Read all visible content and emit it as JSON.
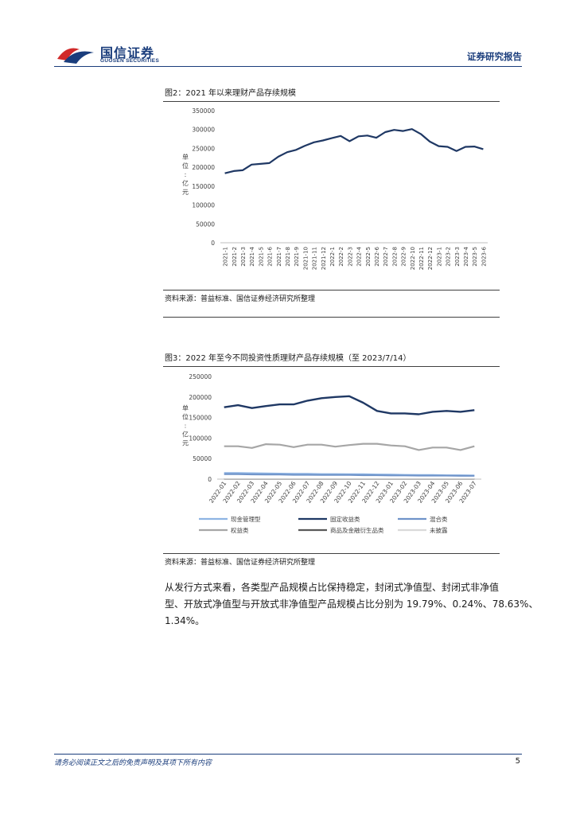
{
  "header": {
    "logo_cn": "国信证券",
    "logo_en": "GUOSEN SECURITIES",
    "report_type": "证券研究报告"
  },
  "figure2": {
    "title": "图2：2021 年以来理财产品存续规模",
    "source": "资料来源：普益标准、国信证券经济研究所整理"
  },
  "figure3": {
    "title": "图3：2022 年至今不同投资性质理财产品存续规模（至 2023/7/14）",
    "source": "资料来源：普益标准、国信证券经济研究所整理"
  },
  "body": {
    "paragraph_lines": [
      "从发行方式来看，各类型产品规模占比保持稳定，封闭式净值型、封闭式非净值",
      "型、开放式净值型与开放式非净值型产品规模占比分别为 19.79%、0.24%、78.63%、",
      "1.34%。"
    ]
  },
  "footer": {
    "disclaimer": "请务必阅读正文之后的免责声明及其项下所有内容",
    "page_number": "5"
  },
  "colors": {
    "brand_blue": "#1a3d7c",
    "logo_red": "#d12a2a",
    "navy_line": "#1f3864",
    "light_blue_line": "#8eb4e3",
    "mid_blue_line": "#6f93c9",
    "gray_line": "#a6a6a6"
  },
  "chart_data": [
    {
      "type": "line",
      "ylabel": "单位：亿元",
      "ylim": [
        0,
        350000
      ],
      "yticks": [
        "0",
        "50000",
        "100000",
        "150000",
        "200000",
        "250000",
        "300000",
        "350000"
      ],
      "grid": false,
      "x": [
        "2021-1",
        "2021-2",
        "2021-3",
        "2021-4",
        "2021-5",
        "2021-6",
        "2021-7",
        "2021-8",
        "2021-9",
        "2021-10",
        "2021-11",
        "2021-12",
        "2022-1",
        "2022-2",
        "2022-3",
        "2022-4",
        "2022-5",
        "2022-6",
        "2022-7",
        "2022-8",
        "2022-9",
        "2022-10",
        "2022-11",
        "2022-12",
        "2023-1",
        "2023-2",
        "2023-3",
        "2023-4",
        "2023-5",
        "2023-6"
      ],
      "series": [
        {
          "values": [
            184000,
            190000,
            192000,
            207000,
            209000,
            211000,
            228000,
            240000,
            246000,
            257000,
            266000,
            271000,
            277000,
            283000,
            269000,
            282000,
            284000,
            278000,
            293000,
            299000,
            296000,
            301000,
            288000,
            268000,
            256000,
            254000,
            243000,
            254000,
            255000,
            248000
          ]
        }
      ]
    },
    {
      "type": "line",
      "ylabel": "单位：亿元",
      "ylim": [
        0,
        250000
      ],
      "yticks": [
        "0",
        "50000",
        "100000",
        "150000",
        "200000",
        "250000"
      ],
      "grid": false,
      "legend": "bottom",
      "x": [
        "2022-01",
        "2022-02",
        "2022-03",
        "2022-04",
        "2022-05",
        "2022-06",
        "2022-07",
        "2022-08",
        "2022-09",
        "2022-10",
        "2022-11",
        "2022-12",
        "2023-01",
        "2023-02",
        "2023-03",
        "2023-04",
        "2023-05",
        "2023-06",
        "2023-07"
      ],
      "series": [
        {
          "name": "现金管理型",
          "color": "#8eb4e3",
          "values": [
            15000,
            15000,
            14500,
            14000,
            13500,
            13000,
            13000,
            12500,
            12500,
            12000,
            12000,
            11500,
            11000,
            10500,
            10000,
            10000,
            9500,
            9500,
            9000
          ]
        },
        {
          "name": "固定收益类",
          "color": "#1f3864",
          "values": [
            175000,
            180000,
            173000,
            178000,
            182000,
            182000,
            191000,
            197000,
            200000,
            202000,
            186000,
            166000,
            160000,
            160000,
            158000,
            164000,
            166000,
            164000,
            168000
          ]
        },
        {
          "name": "混合类",
          "color": "#6f93c9",
          "values": [
            12000,
            12000,
            11500,
            11000,
            11000,
            10500,
            10500,
            10000,
            10000,
            10000,
            9500,
            9500,
            9000,
            9000,
            8500,
            8500,
            8500,
            8000,
            8000
          ]
        },
        {
          "name": "权益类",
          "color": "#a6a6a6",
          "values": [
            80000,
            80000,
            76000,
            85000,
            84000,
            78000,
            84000,
            84000,
            79000,
            83000,
            86000,
            86000,
            82000,
            80000,
            71000,
            77000,
            77000,
            71000,
            80000
          ]
        },
        {
          "name": "商品及金融衍生品类",
          "color": "#595959",
          "values": [
            300,
            300,
            300,
            300,
            300,
            300,
            300,
            300,
            300,
            300,
            300,
            300,
            300,
            300,
            300,
            300,
            300,
            300,
            300
          ]
        },
        {
          "name": "未披露",
          "color": "#d9d9d9",
          "values": [
            500,
            500,
            500,
            500,
            500,
            500,
            500,
            500,
            500,
            500,
            500,
            500,
            500,
            500,
            500,
            500,
            500,
            500,
            500
          ]
        }
      ]
    }
  ]
}
